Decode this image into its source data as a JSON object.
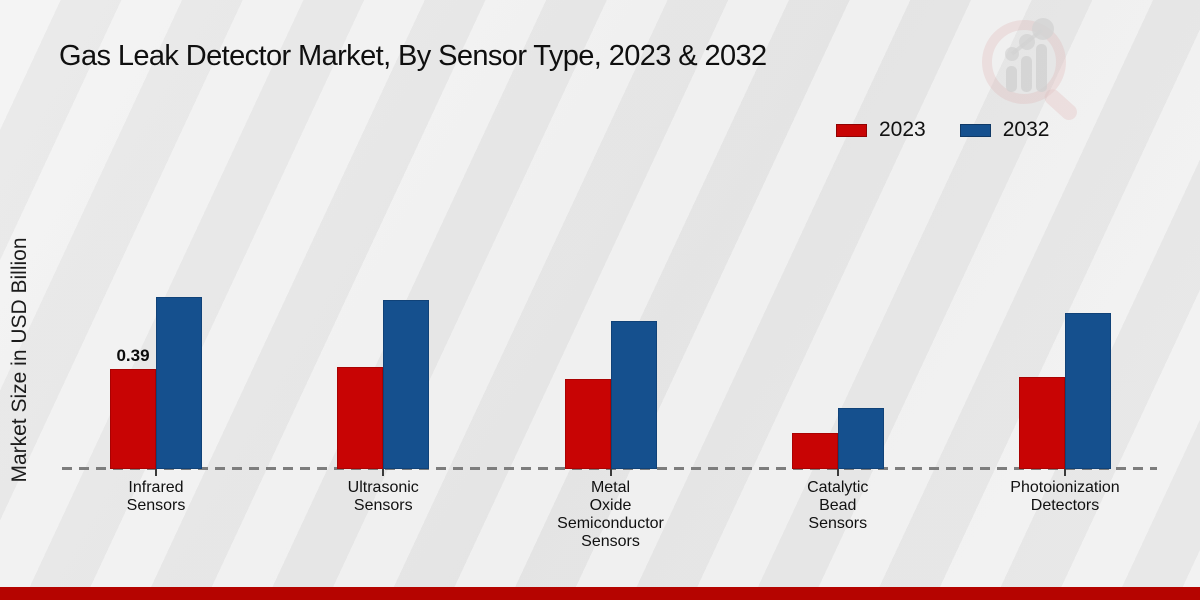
{
  "page": {
    "title": "Gas Leak Detector Market, By Sensor Type, 2023 & 2032",
    "y_axis_label": "Market Size in USD Billion"
  },
  "legend": {
    "items": [
      {
        "label": "2023",
        "color": "#c80404"
      },
      {
        "label": "2032",
        "color": "#15508e"
      }
    ]
  },
  "chart_data": {
    "type": "bar",
    "title": "Gas Leak Detector Market, By Sensor Type, 2023 & 2032",
    "xlabel": "",
    "ylabel": "Market Size in USD Billion",
    "unit": "USD Billion",
    "ylim": [
      0,
      0.75
    ],
    "grid": false,
    "legend_position": "top-right",
    "baseline_style": "dashed",
    "categories": [
      "Infrared Sensors",
      "Ultrasonic Sensors",
      "Metal Oxide Semiconductor Sensors",
      "Catalytic Bead Sensors",
      "Photoionization Detectors"
    ],
    "category_lines": [
      [
        "Infrared",
        "Sensors"
      ],
      [
        "Ultrasonic",
        "Sensors"
      ],
      [
        "Metal",
        "Oxide",
        "Semiconductor",
        "Sensors"
      ],
      [
        "Catalytic",
        "Bead",
        "Sensors"
      ],
      [
        "Photoionization",
        "Detectors"
      ]
    ],
    "series": [
      {
        "name": "2023",
        "color": "#c80404",
        "values": [
          0.39,
          0.4,
          0.35,
          0.14,
          0.36
        ]
      },
      {
        "name": "2032",
        "color": "#15508e",
        "values": [
          0.67,
          0.66,
          0.58,
          0.24,
          0.61
        ]
      }
    ],
    "annotations": [
      {
        "category_index": 0,
        "series_index": 0,
        "text": "0.39"
      }
    ]
  },
  "colors": {
    "accent_red": "#c80404",
    "accent_blue": "#15508e",
    "footer_bar": "#b50400",
    "baseline_dash": "#7d7d7d",
    "background": "#ebebeb"
  },
  "branding": {
    "watermark": "magnifier-bar-chart-logo"
  }
}
